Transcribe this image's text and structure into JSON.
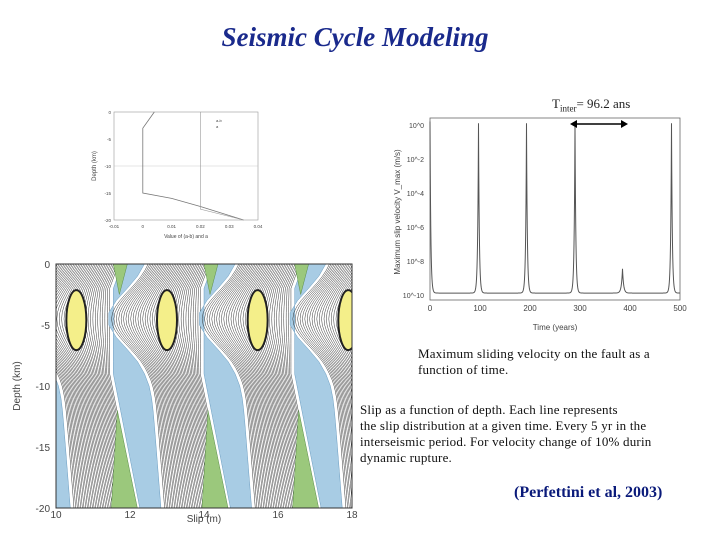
{
  "title": "Seismic Cycle Modeling",
  "tinter": {
    "main": "T",
    "sub": "inter",
    "rest": "= 96.2 ans"
  },
  "captions": {
    "velocity_line1": "Maximum sliding velocity on the fault as a",
    "velocity_line2": "function of time.",
    "slip_line1": "Slip as a function of depth. Each line represents",
    "slip_line2": "the slip distribution at a given time. Every 5 yr in the",
    "slip_line3": "interseismic period. For velocity change of 10% durin",
    "slip_line4": "dynamic rupture."
  },
  "citation": "(Perfettini et al, 2003)",
  "chart_data": [
    {
      "type": "line",
      "title": "",
      "xlabel": "Value of (a-b) and a",
      "ylabel": "Depth (km)",
      "xticks": [
        "-0.01",
        "0",
        "0.01",
        "0.02",
        "0.03",
        "0.04"
      ],
      "yticks": [
        "0",
        "-5",
        "-10",
        "-15",
        "-20"
      ],
      "xlim": [
        -0.01,
        0.04
      ],
      "ylim": [
        -20,
        0
      ],
      "legend": [
        "a-b",
        "a"
      ],
      "series": [
        {
          "name": "a-b",
          "x": [
            0.004,
            0.0,
            0.0,
            0.01,
            0.02,
            0.035
          ],
          "y": [
            0,
            -3,
            -15,
            -16,
            -17.5,
            -20
          ]
        },
        {
          "name": "a",
          "x": [
            0.02,
            0.02,
            0.035
          ],
          "y": [
            0,
            -18,
            -20
          ]
        }
      ]
    },
    {
      "type": "line",
      "title": "",
      "xlabel": "Time (years)",
      "ylabel": "Maximum slip velocity V_max (m/s)",
      "xticks": [
        "0",
        "100",
        "200",
        "300",
        "400",
        "500"
      ],
      "yticks": [
        "10^0",
        "10^-2",
        "10^-4",
        "10^-6",
        "10^-8",
        "10^-10"
      ],
      "xlim": [
        0,
        500
      ],
      "ylog": true,
      "ylim": [
        -10,
        0.5
      ],
      "peaks_years": [
        0,
        97,
        193,
        290,
        385,
        483
      ],
      "peaks_log_v": [
        0.3,
        0.2,
        0.2,
        0.2,
        -8.2,
        0.2
      ],
      "baseline_log_v": -9.6
    },
    {
      "type": "line",
      "title": "",
      "xlabel": "Slip (m)",
      "ylabel": "Depth (km)",
      "xticks": [
        "10",
        "12",
        "14",
        "16",
        "18"
      ],
      "yticks": [
        "0",
        "-5",
        "-10",
        "-15",
        "-20"
      ],
      "xlim": [
        10,
        18
      ],
      "ylim": [
        -20,
        0
      ],
      "cycles": 3,
      "cycle_length_slip": 2.45
    }
  ]
}
